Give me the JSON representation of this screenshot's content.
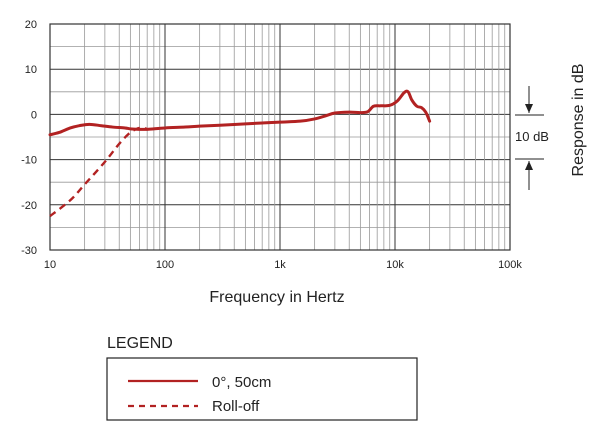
{
  "chart_data": {
    "type": "line",
    "xlabel": "Frequency in Hertz",
    "ylabel": "Response in dB",
    "x_scale": "log",
    "xlim": [
      10,
      100000
    ],
    "ylim": [
      -30,
      20
    ],
    "x_ticks": [
      {
        "value": 10,
        "label": "10"
      },
      {
        "value": 100,
        "label": "100"
      },
      {
        "value": 1000,
        "label": "1k"
      },
      {
        "value": 10000,
        "label": "10k"
      },
      {
        "value": 100000,
        "label": "100k"
      }
    ],
    "y_ticks": [
      {
        "value": 20,
        "label": "20"
      },
      {
        "value": 10,
        "label": "10"
      },
      {
        "value": 0,
        "label": "0"
      },
      {
        "value": -10,
        "label": "-10"
      },
      {
        "value": -20,
        "label": "-20"
      },
      {
        "value": -30,
        "label": "-30"
      }
    ],
    "grid": true,
    "scale_marker": {
      "label": "10 dB",
      "from": 0,
      "to": -10
    },
    "legend": {
      "title": "LEGEND",
      "placement": "bottom"
    },
    "series": [
      {
        "name": "0°, 50cm",
        "style": "solid",
        "color": "#b22222",
        "points": [
          [
            10,
            -4.5
          ],
          [
            12,
            -4.0
          ],
          [
            15,
            -3.0
          ],
          [
            18,
            -2.5
          ],
          [
            22,
            -2.2
          ],
          [
            28,
            -2.5
          ],
          [
            35,
            -2.8
          ],
          [
            45,
            -3.0
          ],
          [
            50,
            -3.2
          ],
          [
            60,
            -3.3
          ],
          [
            70,
            -3.3
          ],
          [
            100,
            -3.0
          ],
          [
            150,
            -2.8
          ],
          [
            200,
            -2.6
          ],
          [
            300,
            -2.4
          ],
          [
            500,
            -2.1
          ],
          [
            700,
            -1.9
          ],
          [
            1000,
            -1.7
          ],
          [
            1500,
            -1.5
          ],
          [
            2000,
            -1.0
          ],
          [
            2500,
            -0.3
          ],
          [
            3000,
            0.3
          ],
          [
            4000,
            0.5
          ],
          [
            5000,
            0.4
          ],
          [
            5800,
            0.6
          ],
          [
            6500,
            1.8
          ],
          [
            7500,
            1.9
          ],
          [
            9000,
            2.0
          ],
          [
            10500,
            3.0
          ],
          [
            12000,
            4.8
          ],
          [
            13000,
            5.0
          ],
          [
            14000,
            3.2
          ],
          [
            15500,
            1.8
          ],
          [
            17000,
            1.5
          ],
          [
            18500,
            0.5
          ],
          [
            20000,
            -1.5
          ]
        ]
      },
      {
        "name": "Roll-off",
        "style": "dashed",
        "color": "#b22222",
        "points": [
          [
            10,
            -22.5
          ],
          [
            15,
            -19.0
          ],
          [
            20,
            -15.5
          ],
          [
            30,
            -10.5
          ],
          [
            40,
            -6.5
          ],
          [
            50,
            -4.0
          ],
          [
            60,
            -3.0
          ],
          [
            70,
            -3.2
          ]
        ]
      }
    ]
  }
}
